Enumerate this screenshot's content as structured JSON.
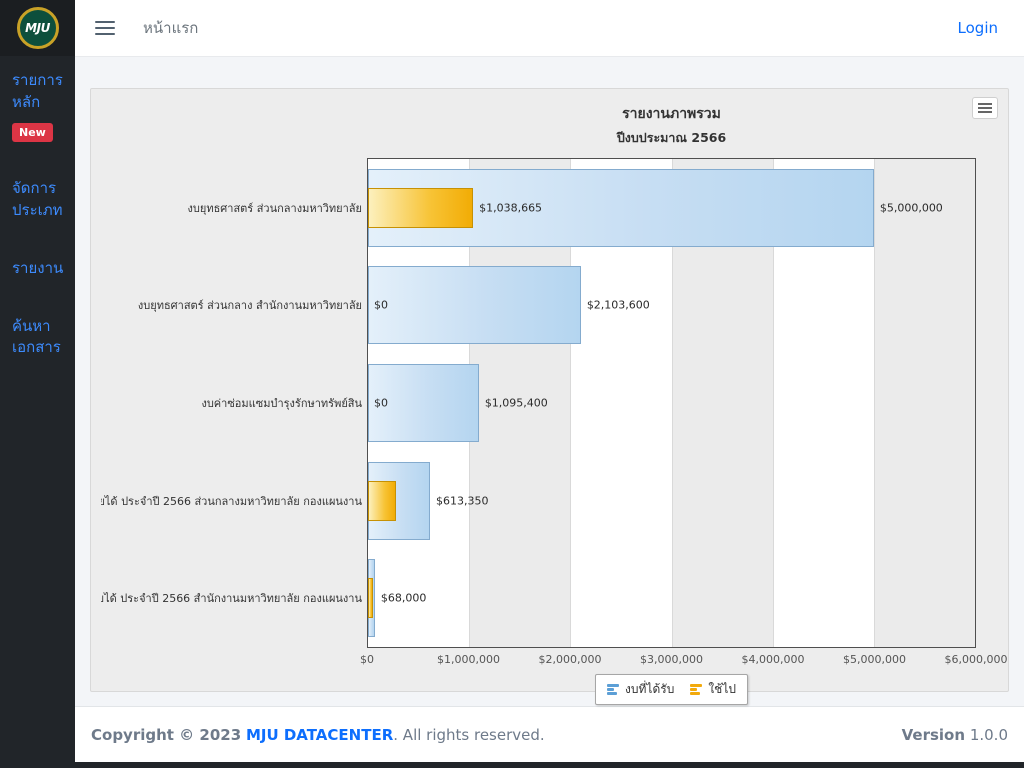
{
  "topbar": {
    "page_title": "หน้าแรก",
    "login_label": "Login"
  },
  "sidebar": {
    "logo_text": "MJU",
    "items": [
      {
        "id": "main-list",
        "lines": [
          "รายการ",
          "หลัก"
        ],
        "badge": "New"
      },
      {
        "id": "manage-type",
        "lines": [
          "จัดการ",
          "ประเภท"
        ]
      },
      {
        "id": "report",
        "lines": [
          "รายงาน"
        ]
      },
      {
        "id": "search-doc",
        "lines": [
          "ค้นหา",
          "เอกสาร"
        ]
      }
    ]
  },
  "chart_data": {
    "type": "bar",
    "title": "รายงานภาพรวม",
    "subtitle": "ปีงบประมาณ 2566",
    "orientation": "horizontal",
    "categories": [
      "งบยุทธศาสตร์ ส่วนกลางมหาวิทยาลัย",
      "งบยุทธศาสตร์ ส่วนกลาง สำนักงานมหาวิทยาลัย",
      "งบค่าซ่อมแซมบำรุงรักษาทรัพย์สิน",
      "เงินรายได้ ประจำปี 2566 ส่วนกลางมหาวิทยาลัย กองแผนงาน",
      "เงินรายได้ ประจำปี 2566 สำนักงานมหาวิทยาลัย กองแผนงาน"
    ],
    "series": [
      {
        "name": "งบที่ได้รับ",
        "color": "#5c9fd6",
        "values": [
          5000000,
          2103600,
          1095400,
          613350,
          68000
        ],
        "labels": [
          "$5,000,000",
          "$2,103,600",
          "$1,095,400",
          "$613,350",
          "$68,000"
        ]
      },
      {
        "name": "ใช้ไป",
        "color": "#f2aa0d",
        "values": [
          1038665,
          0,
          0,
          280000,
          45000
        ],
        "labels": [
          "$1,038,665",
          "$0",
          "$0",
          "",
          ""
        ]
      }
    ],
    "xlim": [
      0,
      6000000
    ],
    "x_ticks": [
      "$0",
      "$1,000,000",
      "$2,000,000",
      "$3,000,000",
      "$4,000,000",
      "$5,000,000",
      "$6,000,000"
    ],
    "grid": true,
    "plot_bands_alternate_shaded": true,
    "legend_position": "bottom"
  },
  "footer": {
    "copyright_prefix": "Copyright © 2023",
    "brand": "MJU DATACENTER",
    "copyright_suffix": ". All rights reserved.",
    "version_label": "Version",
    "version_value": "1.0.0"
  },
  "colors": {
    "accent_blue": "#0d6efd",
    "sidebar_bg": "#212529",
    "sidebar_link": "#3d8bfd",
    "badge_red": "#dc3545",
    "card_bg": "#ededed",
    "plot_band_shaded": "#ebebeb",
    "series_received": "#5c9fd6",
    "series_used": "#f2aa0d"
  }
}
